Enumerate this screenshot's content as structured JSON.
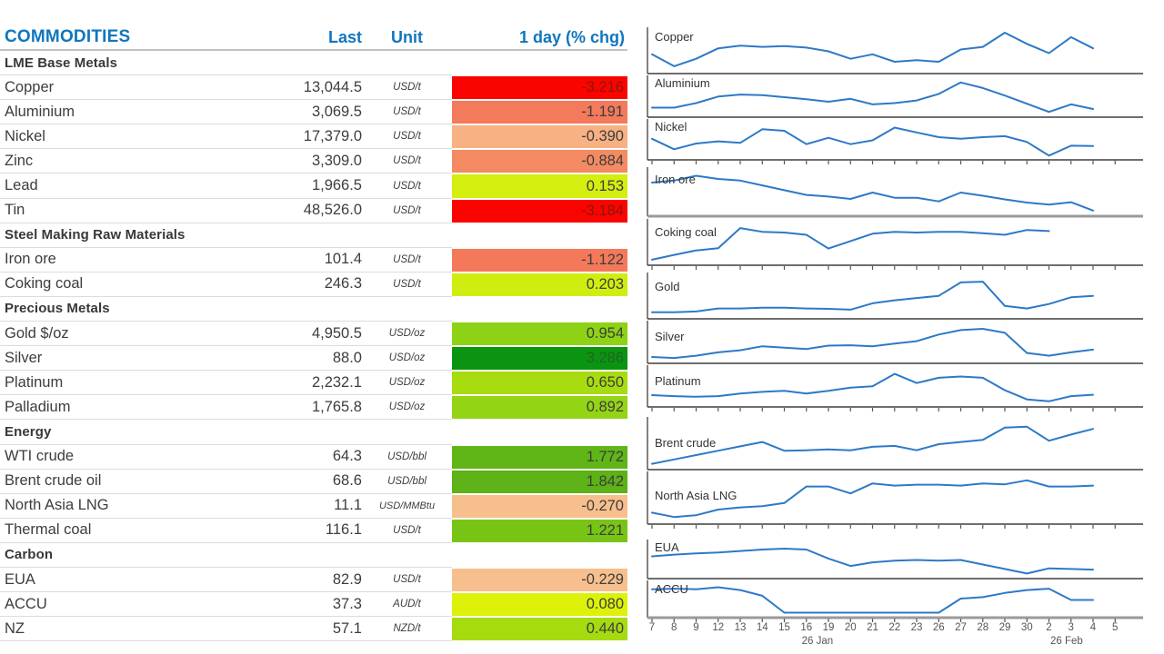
{
  "table": {
    "title": "COMMODITIES",
    "accent_color": "#1076BE",
    "columns": {
      "last": "Last",
      "unit": "Unit",
      "change": "1 day (% chg)"
    },
    "rows": [
      {
        "type": "section",
        "name": "LME Base Metals"
      },
      {
        "type": "data",
        "name": "Copper",
        "last": "13,044.5",
        "unit": "USD/t",
        "change": "-3.216",
        "bg": "#FA0400",
        "fg": "#8C1509"
      },
      {
        "type": "data",
        "name": "Aluminium",
        "last": "3,069.5",
        "unit": "USD/t",
        "change": "-1.191",
        "bg": "#F37A5B",
        "fg": "#3D3D3D"
      },
      {
        "type": "data",
        "name": "Nickel",
        "last": "17,379.0",
        "unit": "USD/t",
        "change": "-0.390",
        "bg": "#F7B183",
        "fg": "#3D3D3D"
      },
      {
        "type": "data",
        "name": "Zinc",
        "last": "3,309.0",
        "unit": "USD/t",
        "change": "-0.884",
        "bg": "#F48A62",
        "fg": "#3D3D3D"
      },
      {
        "type": "data",
        "name": "Lead",
        "last": "1,966.5",
        "unit": "USD/t",
        "change": "0.153",
        "bg": "#D3EE0F",
        "fg": "#3D3D3D"
      },
      {
        "type": "data",
        "name": "Tin",
        "last": "48,526.0",
        "unit": "USD/t",
        "change": "-3.184",
        "bg": "#FA0400",
        "fg": "#8C1509"
      },
      {
        "type": "section",
        "name": "Steel Making Raw Materials"
      },
      {
        "type": "data",
        "name": "Iron ore",
        "last": "101.4",
        "unit": "USD/t",
        "change": "-1.122",
        "bg": "#F4795B",
        "fg": "#3D3D3D"
      },
      {
        "type": "data",
        "name": "Coking coal",
        "last": "246.3",
        "unit": "USD/t",
        "change": "0.203",
        "bg": "#CFEE10",
        "fg": "#3D3D3D"
      },
      {
        "type": "section",
        "name": "Precious Metals"
      },
      {
        "type": "data",
        "name": "Gold $/oz",
        "last": "4,950.5",
        "unit": "USD/oz",
        "change": "0.954",
        "bg": "#8ED216",
        "fg": "#3D3D3D"
      },
      {
        "type": "data",
        "name": "Silver",
        "last": "88.0",
        "unit": "USD/oz",
        "change": "3.286",
        "bg": "#0B9412",
        "fg": "#20661F"
      },
      {
        "type": "data",
        "name": "Platinum",
        "last": "2,232.1",
        "unit": "USD/oz",
        "change": "0.650",
        "bg": "#A7DC11",
        "fg": "#3D3D3D"
      },
      {
        "type": "data",
        "name": "Palladium",
        "last": "1,765.8",
        "unit": "USD/oz",
        "change": "0.892",
        "bg": "#93D414",
        "fg": "#3D3D3D"
      },
      {
        "type": "section",
        "name": "Energy"
      },
      {
        "type": "data",
        "name": "WTI crude",
        "last": "64.3",
        "unit": "USD/bbl",
        "change": "1.772",
        "bg": "#60B517",
        "fg": "#3D3D3D"
      },
      {
        "type": "data",
        "name": "Brent crude oil",
        "last": "68.6",
        "unit": "USD/bbl",
        "change": "1.842",
        "bg": "#5CB216",
        "fg": "#3D3D3D"
      },
      {
        "type": "data",
        "name": "North Asia LNG",
        "last": "11.1",
        "unit": "USD/MMBtu",
        "change": "-0.270",
        "bg": "#F7BF8D",
        "fg": "#3D3D3D"
      },
      {
        "type": "data",
        "name": "Thermal coal",
        "last": "116.1",
        "unit": "USD/t",
        "change": "1.221",
        "bg": "#78C415",
        "fg": "#3D3D3D"
      },
      {
        "type": "section",
        "name": "Carbon"
      },
      {
        "type": "data",
        "name": "EUA",
        "last": "82.9",
        "unit": "USD/t",
        "change": "-0.229",
        "bg": "#F7BF8D",
        "fg": "#3D3D3D"
      },
      {
        "type": "data",
        "name": "ACCU",
        "last": "37.3",
        "unit": "AUD/t",
        "change": "0.080",
        "bg": "#DDF10B",
        "fg": "#3D3D3D"
      },
      {
        "type": "data",
        "name": "NZ",
        "last": "57.1",
        "unit": "NZD/t",
        "change": "0.440",
        "bg": "#A6DB10",
        "fg": "#3D3D3D"
      }
    ]
  },
  "chart_data": {
    "type": "line",
    "title": "",
    "line_color": "#2D79C7",
    "note": "daily sparklines, no y-axis shown; values normalized 0-1 within each panel",
    "x_tick_labels": [
      "7",
      "8",
      "9",
      "12",
      "13",
      "14",
      "15",
      "16",
      "19",
      "20",
      "21",
      "22",
      "23",
      "26",
      "27",
      "28",
      "29",
      "30",
      "2",
      "3",
      "4",
      "5"
    ],
    "x_sub_labels": [
      {
        "text": "26 Jan",
        "tick_index": 7.5
      },
      {
        "text": "26 Feb",
        "tick_index": 18.8
      }
    ],
    "series": [
      {
        "name": "Copper",
        "values_norm": [
          0.42,
          0.1,
          0.3,
          0.58,
          0.65,
          0.62,
          0.64,
          0.6,
          0.5,
          0.3,
          0.42,
          0.22,
          0.26,
          0.22,
          0.55,
          0.62,
          1.0,
          0.7,
          0.45,
          0.88,
          0.58
        ]
      },
      {
        "name": "Aluminium",
        "values_norm": [
          0.18,
          0.18,
          0.32,
          0.52,
          0.58,
          0.56,
          0.5,
          0.44,
          0.36,
          0.45,
          0.28,
          0.32,
          0.4,
          0.6,
          0.95,
          0.78,
          0.55,
          0.3,
          0.05,
          0.28,
          0.14
        ]
      },
      {
        "name": "Nickel",
        "values_norm": [
          0.55,
          0.22,
          0.4,
          0.47,
          0.42,
          0.85,
          0.8,
          0.38,
          0.58,
          0.38,
          0.5,
          0.9,
          0.75,
          0.6,
          0.55,
          0.6,
          0.63,
          0.45,
          0.02,
          0.33,
          0.32
        ]
      },
      {
        "name": "Iron ore",
        "values_norm": [
          0.75,
          0.8,
          0.92,
          0.84,
          0.8,
          0.68,
          0.56,
          0.44,
          0.4,
          0.34,
          0.5,
          0.37,
          0.37,
          0.28,
          0.5,
          0.42,
          0.33,
          0.25,
          0.2,
          0.26,
          0.05
        ]
      },
      {
        "name": "Coking coal",
        "values_norm": [
          0.05,
          0.18,
          0.3,
          0.36,
          0.9,
          0.8,
          0.78,
          0.72,
          0.35,
          0.55,
          0.75,
          0.8,
          0.78,
          0.8,
          0.8,
          0.76,
          0.72,
          0.85,
          0.82
        ]
      },
      {
        "name": "Gold",
        "values_norm": [
          0.08,
          0.08,
          0.1,
          0.18,
          0.18,
          0.2,
          0.2,
          0.18,
          0.17,
          0.15,
          0.32,
          0.4,
          0.46,
          0.52,
          0.88,
          0.9,
          0.25,
          0.18,
          0.3,
          0.48,
          0.52
        ]
      },
      {
        "name": "Silver",
        "values_norm": [
          0.08,
          0.05,
          0.12,
          0.22,
          0.28,
          0.4,
          0.36,
          0.32,
          0.42,
          0.43,
          0.4,
          0.48,
          0.55,
          0.75,
          0.88,
          0.92,
          0.8,
          0.2,
          0.12,
          0.22,
          0.3
        ]
      },
      {
        "name": "Platinum",
        "values_norm": [
          0.25,
          0.22,
          0.2,
          0.22,
          0.3,
          0.35,
          0.38,
          0.3,
          0.38,
          0.48,
          0.52,
          0.9,
          0.62,
          0.78,
          0.82,
          0.78,
          0.4,
          0.12,
          0.06,
          0.22,
          0.26
        ]
      },
      {
        "name": "Brent crude",
        "values_norm": [
          0.05,
          0.15,
          0.25,
          0.35,
          0.45,
          0.55,
          0.35,
          0.36,
          0.38,
          0.36,
          0.44,
          0.46,
          0.36,
          0.5,
          0.55,
          0.6,
          0.88,
          0.9,
          0.58,
          0.72,
          0.85
        ]
      },
      {
        "name": "North Asia LNG",
        "values_norm": [
          0.18,
          0.08,
          0.12,
          0.25,
          0.3,
          0.33,
          0.4,
          0.78,
          0.78,
          0.62,
          0.85,
          0.8,
          0.82,
          0.82,
          0.8,
          0.85,
          0.83,
          0.92,
          0.78,
          0.78,
          0.8
        ]
      },
      {
        "name": "EUA",
        "values_norm": [
          0.62,
          0.68,
          0.72,
          0.75,
          0.8,
          0.85,
          0.88,
          0.85,
          0.55,
          0.3,
          0.42,
          0.48,
          0.5,
          0.48,
          0.5,
          0.35,
          0.2,
          0.05,
          0.22,
          0.2,
          0.18
        ]
      },
      {
        "name": "ACCU",
        "values_norm": [
          0.88,
          0.9,
          0.88,
          0.95,
          0.85,
          0.65,
          0.05,
          0.05,
          0.05,
          0.05,
          0.05,
          0.05,
          0.05,
          0.05,
          0.55,
          0.6,
          0.75,
          0.85,
          0.9,
          0.5,
          0.5
        ]
      }
    ]
  }
}
